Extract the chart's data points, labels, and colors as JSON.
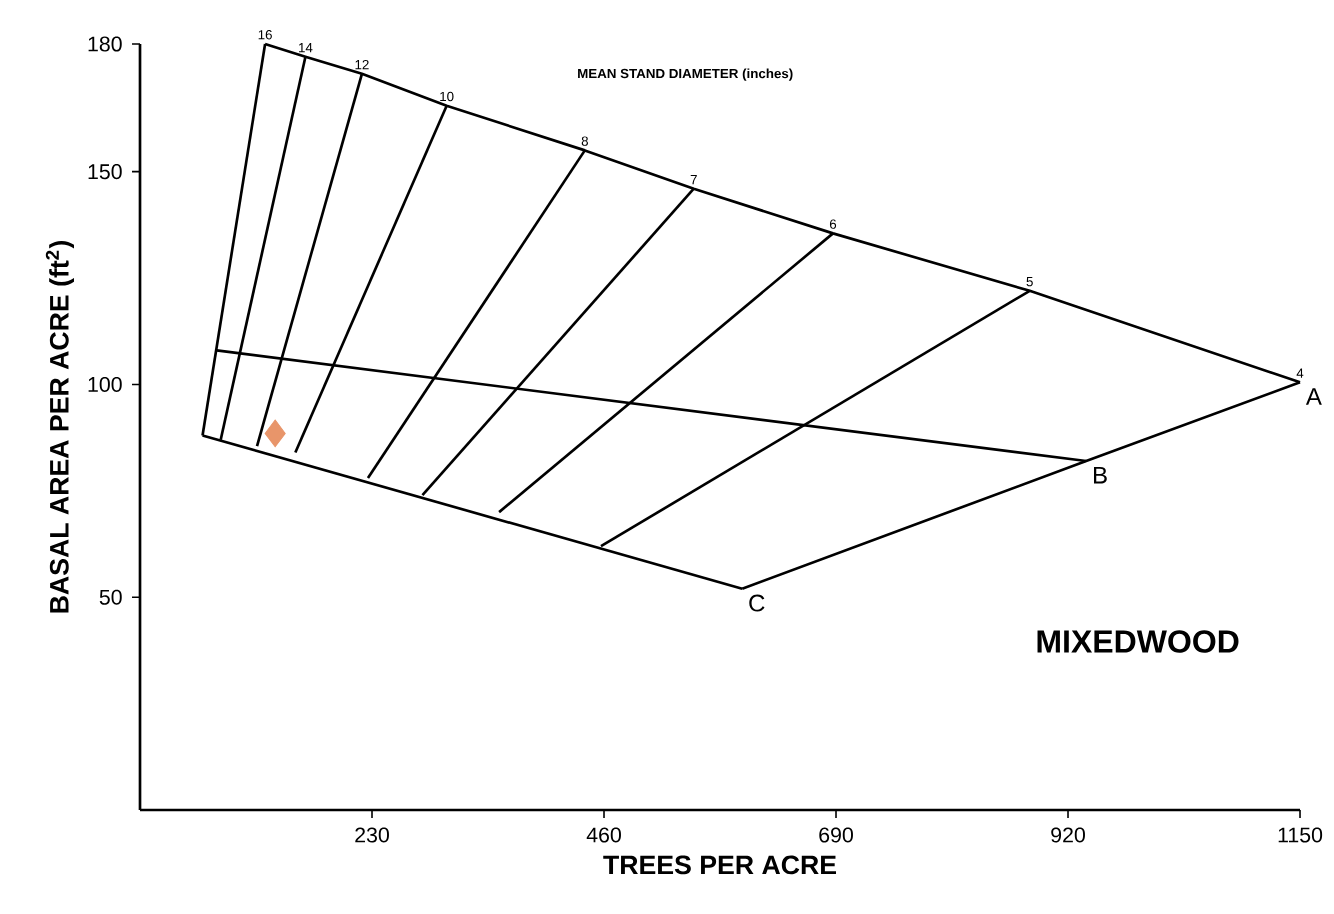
{
  "chart_data": {
    "type": "line",
    "xlabel": "TREES PER ACRE",
    "ylabel": "BASAL AREA PER ACRE (ft$^{2}$)",
    "xlim": [
      0,
      1150
    ],
    "ylim": [
      0,
      180
    ],
    "xticks": [
      230,
      460,
      690,
      920,
      1150
    ],
    "yticks": [
      50,
      100,
      150,
      180
    ],
    "marker": "none",
    "line_style": "solid",
    "series": [
      {
        "color": "#000000",
        "x": [
          124,
          164,
          220,
          304,
          441,
          549,
          687,
          882,
          1150
        ],
        "values": [
          180,
          177,
          173,
          165.5,
          155,
          146,
          135.5,
          122,
          100.5
        ]
      },
      {
        "color": "#000000",
        "x": [
          76,
          938
        ],
        "values": [
          108,
          82
        ]
      },
      {
        "color": "#000000",
        "x": [
          62,
          597
        ],
        "values": [
          88,
          52
        ]
      },
      {
        "color": "#000000",
        "x": [
          1150,
          938,
          597
        ],
        "values": [
          100.5,
          82,
          52
        ]
      },
      {
        "color": "#000000",
        "x": [
          124,
          62
        ],
        "values": [
          180,
          88
        ]
      },
      {
        "color": "#000000",
        "x": [
          164,
          80
        ],
        "values": [
          177,
          87
        ]
      },
      {
        "color": "#000000",
        "x": [
          220,
          116
        ],
        "values": [
          173,
          85.5
        ]
      },
      {
        "color": "#000000",
        "x": [
          304,
          154
        ],
        "values": [
          165.5,
          84
        ]
      },
      {
        "color": "#000000",
        "x": [
          441,
          226
        ],
        "values": [
          155,
          78
        ]
      },
      {
        "color": "#000000",
        "x": [
          549,
          280
        ],
        "values": [
          146,
          74
        ]
      },
      {
        "color": "#000000",
        "x": [
          687,
          356
        ],
        "values": [
          135.5,
          70
        ]
      },
      {
        "color": "#000000",
        "x": [
          882,
          457
        ],
        "values": [
          122,
          62
        ]
      },
      {
        "type": "scatter",
        "marker": "diamond",
        "color": "#e8956a",
        "x": [
          134
        ],
        "values": [
          88.5
        ]
      }
    ],
    "annotations": [
      "MEAN STAND DIAMETER (inches)",
      "MIXEDWOOD",
      {
        "text": "16",
        "x": 124,
        "y": 180
      },
      {
        "text": "14",
        "x": 164,
        "y": 177
      },
      {
        "text": "12",
        "x": 220,
        "y": 173
      },
      {
        "text": "10",
        "x": 304,
        "y": 165.5
      },
      {
        "text": "8",
        "x": 441,
        "y": 155
      },
      {
        "text": "7",
        "x": 549,
        "y": 146
      },
      {
        "text": "6",
        "x": 687,
        "y": 135.5
      },
      {
        "text": "5",
        "x": 882,
        "y": 122
      },
      {
        "text": "4",
        "x": 1150,
        "y": 100.5
      },
      {
        "text": "A",
        "x": 1150,
        "y": 100.5
      },
      {
        "text": "B",
        "x": 938,
        "y": 82
      },
      {
        "text": "C",
        "x": 597,
        "y": 52
      }
    ]
  }
}
